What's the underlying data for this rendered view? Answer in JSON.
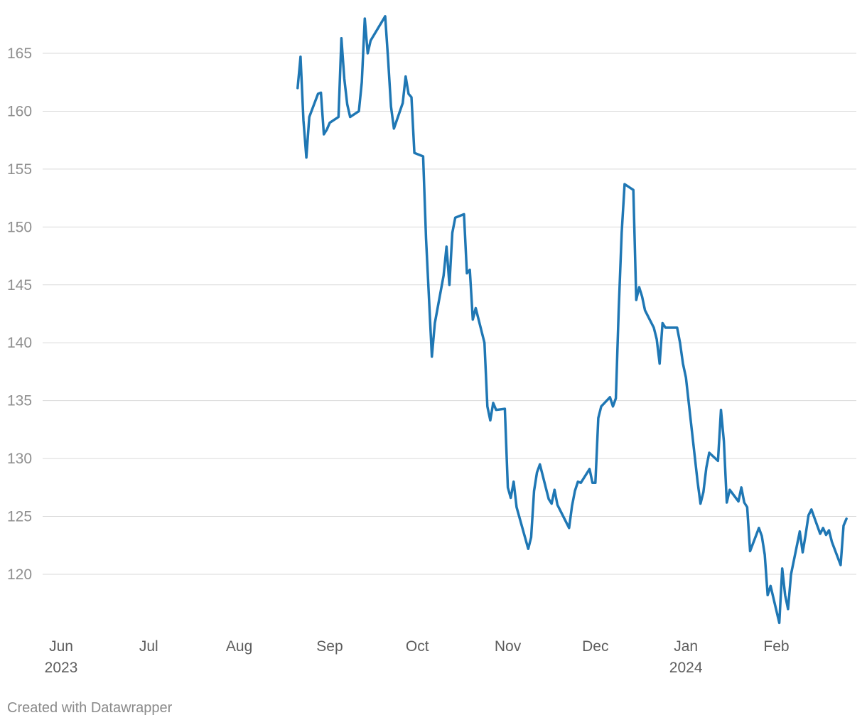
{
  "chart_data": {
    "type": "line",
    "title": "",
    "xlabel": "",
    "ylabel": "",
    "ylim": [
      115,
      168
    ],
    "xlim": [
      "2023-06-01",
      "2024-02-24"
    ],
    "y_ticks": [
      120,
      125,
      130,
      135,
      140,
      145,
      150,
      155,
      160,
      165
    ],
    "x_ticks": [
      {
        "date": "2023-06-01",
        "label": "Jun",
        "year": "2023"
      },
      {
        "date": "2023-07-01",
        "label": "Jul",
        "year": ""
      },
      {
        "date": "2023-08-01",
        "label": "Aug",
        "year": ""
      },
      {
        "date": "2023-09-01",
        "label": "Sep",
        "year": ""
      },
      {
        "date": "2023-10-01",
        "label": "Oct",
        "year": ""
      },
      {
        "date": "2023-11-01",
        "label": "Nov",
        "year": ""
      },
      {
        "date": "2023-12-01",
        "label": "Dec",
        "year": ""
      },
      {
        "date": "2024-01-01",
        "label": "Jan",
        "year": "2024"
      },
      {
        "date": "2024-02-01",
        "label": "Feb",
        "year": ""
      }
    ],
    "grid": true,
    "series": [
      {
        "color": "#1f77b4",
        "points": [
          [
            "2023-08-21",
            162.0
          ],
          [
            "2023-08-22",
            164.7
          ],
          [
            "2023-08-23",
            159.2
          ],
          [
            "2023-08-24",
            156.0
          ],
          [
            "2023-08-25",
            159.5
          ],
          [
            "2023-08-28",
            161.5
          ],
          [
            "2023-08-29",
            161.6
          ],
          [
            "2023-08-30",
            158.0
          ],
          [
            "2023-08-31",
            158.4
          ],
          [
            "2023-09-01",
            159.0
          ],
          [
            "2023-09-04",
            159.5
          ],
          [
            "2023-09-05",
            166.3
          ],
          [
            "2023-09-06",
            162.8
          ],
          [
            "2023-09-07",
            160.6
          ],
          [
            "2023-09-08",
            159.5
          ],
          [
            "2023-09-11",
            160.0
          ],
          [
            "2023-09-12",
            162.5
          ],
          [
            "2023-09-13",
            168.0
          ],
          [
            "2023-09-14",
            165.0
          ],
          [
            "2023-09-15",
            166.1
          ],
          [
            "2023-09-20",
            168.2
          ],
          [
            "2023-09-21",
            164.5
          ],
          [
            "2023-09-22",
            160.4
          ],
          [
            "2023-09-23",
            158.5
          ],
          [
            "2023-09-26",
            160.7
          ],
          [
            "2023-09-27",
            163.0
          ],
          [
            "2023-09-28",
            161.5
          ],
          [
            "2023-09-29",
            161.2
          ],
          [
            "2023-09-30",
            156.4
          ],
          [
            "2023-10-03",
            156.1
          ],
          [
            "2023-10-04",
            149.0
          ],
          [
            "2023-10-06",
            138.8
          ],
          [
            "2023-10-07",
            141.7
          ],
          [
            "2023-10-10",
            145.8
          ],
          [
            "2023-10-11",
            148.3
          ],
          [
            "2023-10-12",
            145.0
          ],
          [
            "2023-10-13",
            149.5
          ],
          [
            "2023-10-14",
            150.8
          ],
          [
            "2023-10-17",
            151.1
          ],
          [
            "2023-10-18",
            146.0
          ],
          [
            "2023-10-19",
            146.3
          ],
          [
            "2023-10-20",
            142.0
          ],
          [
            "2023-10-21",
            143.0
          ],
          [
            "2023-10-24",
            140.0
          ],
          [
            "2023-10-25",
            134.5
          ],
          [
            "2023-10-26",
            133.3
          ],
          [
            "2023-10-27",
            134.8
          ],
          [
            "2023-10-28",
            134.2
          ],
          [
            "2023-10-31",
            134.3
          ],
          [
            "2023-11-01",
            127.5
          ],
          [
            "2023-11-02",
            126.6
          ],
          [
            "2023-11-03",
            128.0
          ],
          [
            "2023-11-04",
            125.8
          ],
          [
            "2023-11-08",
            122.2
          ],
          [
            "2023-11-09",
            123.2
          ],
          [
            "2023-11-10",
            127.2
          ],
          [
            "2023-11-11",
            128.8
          ],
          [
            "2023-11-12",
            129.5
          ],
          [
            "2023-11-15",
            126.5
          ],
          [
            "2023-11-16",
            126.1
          ],
          [
            "2023-11-17",
            127.3
          ],
          [
            "2023-11-18",
            126.0
          ],
          [
            "2023-11-22",
            124.0
          ],
          [
            "2023-11-23",
            125.9
          ],
          [
            "2023-11-24",
            127.2
          ],
          [
            "2023-11-25",
            128.0
          ],
          [
            "2023-11-26",
            127.9
          ],
          [
            "2023-11-29",
            129.1
          ],
          [
            "2023-11-30",
            127.9
          ],
          [
            "2023-12-01",
            127.9
          ],
          [
            "2023-12-02",
            133.5
          ],
          [
            "2023-12-03",
            134.5
          ],
          [
            "2023-12-06",
            135.3
          ],
          [
            "2023-12-07",
            134.5
          ],
          [
            "2023-12-08",
            135.2
          ],
          [
            "2023-12-09",
            143.0
          ],
          [
            "2023-12-10",
            149.5
          ],
          [
            "2023-12-11",
            153.7
          ],
          [
            "2023-12-14",
            153.2
          ],
          [
            "2023-12-15",
            143.7
          ],
          [
            "2023-12-16",
            144.8
          ],
          [
            "2023-12-17",
            144.0
          ],
          [
            "2023-12-18",
            142.8
          ],
          [
            "2023-12-21",
            141.3
          ],
          [
            "2023-12-22",
            140.3
          ],
          [
            "2023-12-23",
            138.2
          ],
          [
            "2023-12-24",
            141.7
          ],
          [
            "2023-12-25",
            141.3
          ],
          [
            "2023-12-29",
            141.3
          ],
          [
            "2023-12-30",
            140.0
          ],
          [
            "2023-12-31",
            138.2
          ],
          [
            "2024-01-01",
            137.0
          ],
          [
            "2024-01-03",
            132.5
          ],
          [
            "2024-01-05",
            128.0
          ],
          [
            "2024-01-06",
            126.1
          ],
          [
            "2024-01-07",
            127.1
          ],
          [
            "2024-01-08",
            129.2
          ],
          [
            "2024-01-09",
            130.5
          ],
          [
            "2024-01-12",
            129.8
          ],
          [
            "2024-01-13",
            134.2
          ],
          [
            "2024-01-14",
            131.5
          ],
          [
            "2024-01-15",
            126.2
          ],
          [
            "2024-01-16",
            127.3
          ],
          [
            "2024-01-19",
            126.3
          ],
          [
            "2024-01-20",
            127.5
          ],
          [
            "2024-01-21",
            126.2
          ],
          [
            "2024-01-22",
            125.8
          ],
          [
            "2024-01-23",
            122.0
          ],
          [
            "2024-01-26",
            124.0
          ],
          [
            "2024-01-27",
            123.3
          ],
          [
            "2024-01-28",
            121.7
          ],
          [
            "2024-01-29",
            118.2
          ],
          [
            "2024-01-30",
            119.0
          ],
          [
            "2024-02-02",
            115.8
          ],
          [
            "2024-02-03",
            120.5
          ],
          [
            "2024-02-04",
            118.2
          ],
          [
            "2024-02-05",
            117.0
          ],
          [
            "2024-02-06",
            120.0
          ],
          [
            "2024-02-09",
            123.7
          ],
          [
            "2024-02-10",
            121.9
          ],
          [
            "2024-02-11",
            123.4
          ],
          [
            "2024-02-12",
            125.1
          ],
          [
            "2024-02-13",
            125.6
          ],
          [
            "2024-02-16",
            123.5
          ],
          [
            "2024-02-17",
            124.0
          ],
          [
            "2024-02-18",
            123.4
          ],
          [
            "2024-02-19",
            123.8
          ],
          [
            "2024-02-20",
            122.8
          ],
          [
            "2024-02-23",
            120.8
          ],
          [
            "2024-02-24",
            124.2
          ],
          [
            "2024-02-25",
            124.8
          ]
        ]
      }
    ]
  },
  "credit": "Created with Datawrapper"
}
